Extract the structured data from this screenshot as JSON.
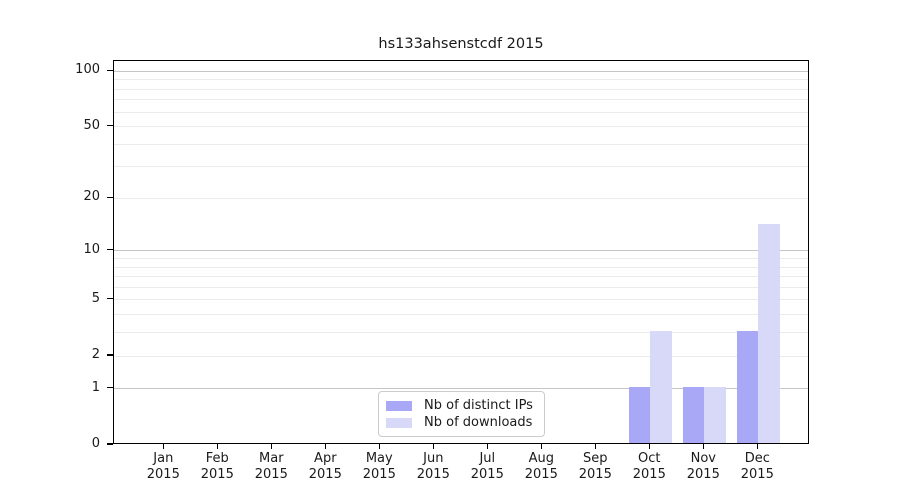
{
  "chart_data": {
    "type": "bar",
    "title": "hs133ahsenstcdf 2015",
    "categories": [
      "Jan",
      "Feb",
      "Mar",
      "Apr",
      "May",
      "Jun",
      "Jul",
      "Aug",
      "Sep",
      "Oct",
      "Nov",
      "Dec"
    ],
    "x_label_year": "2015",
    "series": [
      {
        "name": "Nb of distinct IPs",
        "color": "#a8a8f6",
        "values": [
          0,
          0,
          0,
          0,
          0,
          0,
          0,
          0,
          0,
          1,
          1,
          3
        ]
      },
      {
        "name": "Nb of downloads",
        "color": "#d8d8f8",
        "values": [
          0,
          0,
          0,
          0,
          0,
          0,
          0,
          0,
          0,
          3,
          1,
          14
        ]
      }
    ],
    "y_ticks": [
      0,
      1,
      2,
      5,
      10,
      20,
      50,
      100
    ],
    "y_minor_gridlines": [
      2,
      3,
      4,
      5,
      6,
      7,
      8,
      9,
      20,
      30,
      40,
      50,
      60,
      70,
      80,
      90
    ],
    "y_major_gridlines": [
      1,
      10,
      100
    ],
    "scale": "log10(value+1)",
    "ylim": [
      0,
      113
    ],
    "grid": "horizontal",
    "legend_position": "bottom-center",
    "colors": {
      "axis": "#000000",
      "text": "#1a1a1a",
      "major_grid": "#c6c6c6",
      "minor_grid": "#ebebeb",
      "legend_border": "#cccccc",
      "background": "#ffffff"
    }
  }
}
